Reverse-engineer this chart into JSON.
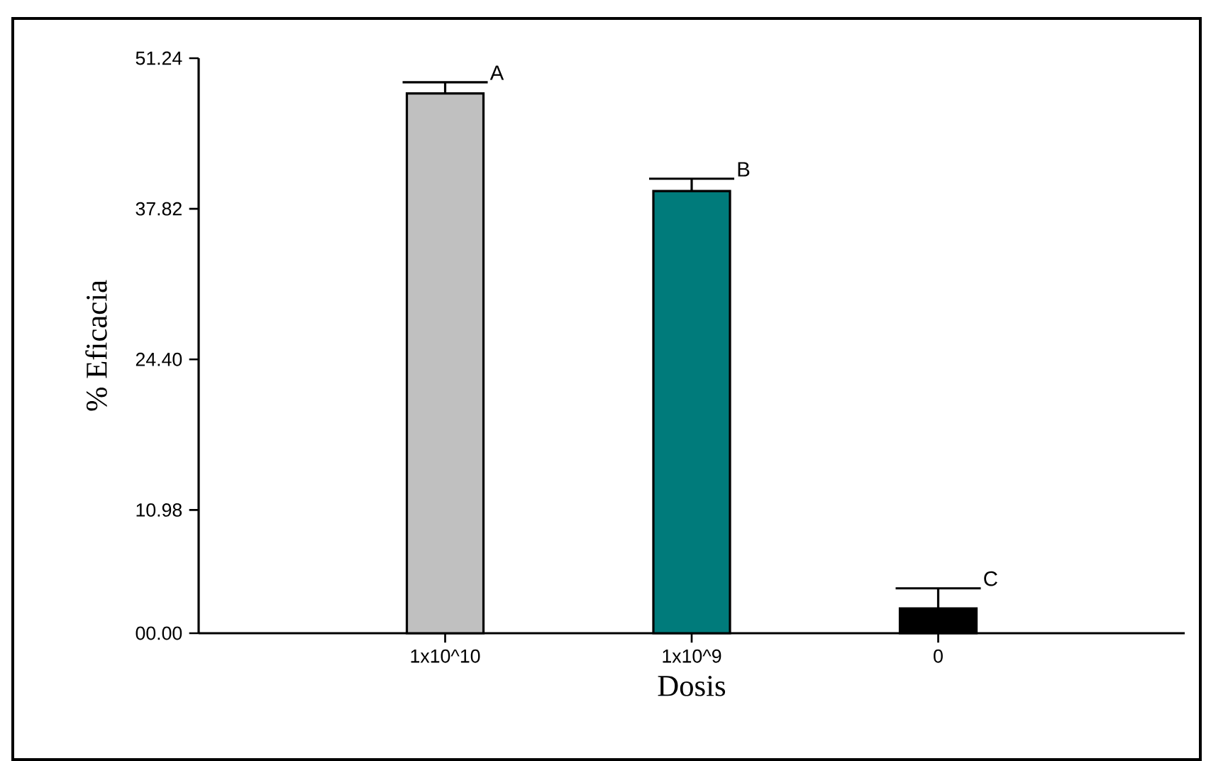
{
  "chart_data": {
    "type": "bar",
    "xlabel": "Dosis",
    "ylabel": "% Eficacia",
    "categories": [
      "1x10^10",
      "1x10^9",
      "0"
    ],
    "values": [
      48.1,
      39.4,
      2.2
    ],
    "colors": [
      "#c0c0c0",
      "#007b7b",
      "#000000"
    ],
    "errors": [
      [
        48.1,
        49.1
      ],
      [
        39.4,
        40.5
      ],
      [
        2.2,
        4.0
      ]
    ],
    "ylim": [
      0,
      51.24
    ],
    "yticks": [
      {
        "value": 0,
        "label": "00.00"
      },
      10.98,
      {
        "value": 24.4,
        "label": "24.40"
      },
      37.82,
      51.24
    ],
    "annotations": [
      {
        "text": "A",
        "x": "1x10^10",
        "y": 49.1
      },
      {
        "text": "B",
        "x": "1x10^9",
        "y": 40.5
      },
      {
        "text": "C",
        "x": "0",
        "y": 4.0
      }
    ],
    "grid": false
  }
}
